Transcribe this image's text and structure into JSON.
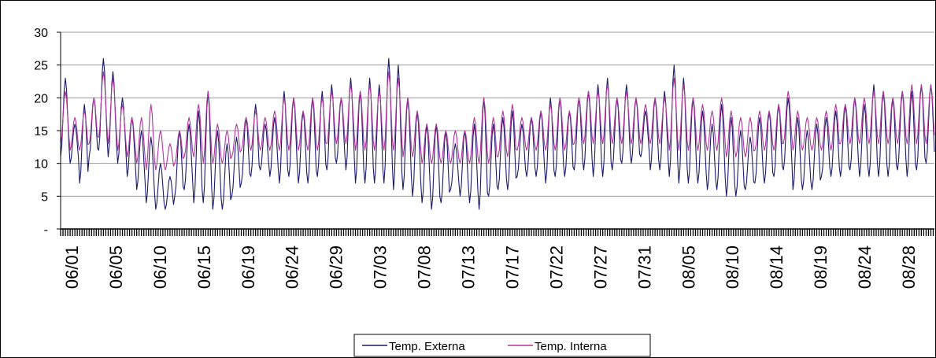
{
  "chart_data": {
    "type": "line",
    "title": "",
    "xlabel": "",
    "ylabel": "",
    "ylim": [
      0,
      30
    ],
    "y_ticks": [
      {
        "value": 0,
        "label": "-"
      },
      {
        "value": 5,
        "label": "5"
      },
      {
        "value": 10,
        "label": "10"
      },
      {
        "value": 15,
        "label": "15"
      },
      {
        "value": 20,
        "label": "20"
      },
      {
        "value": 25,
        "label": "25"
      },
      {
        "value": 30,
        "label": "30"
      }
    ],
    "x_range": [
      "06/01",
      "08/31"
    ],
    "x_tick_labels": [
      "06/01",
      "06/05",
      "06/10",
      "06/15",
      "06/19",
      "06/24",
      "06/29",
      "07/03",
      "07/08",
      "07/13",
      "07/17",
      "07/22",
      "07/27",
      "07/31",
      "08/05",
      "08/10",
      "08/14",
      "08/19",
      "08/24",
      "08/28"
    ],
    "gridlines": "horizontal",
    "legend_position": "bottom",
    "series": [
      {
        "name": "Temp. Externa",
        "color": "#1a1a6e",
        "daily_min": [
          11,
          10,
          7,
          11,
          12,
          11,
          10,
          8,
          6,
          4,
          3,
          3,
          5,
          6,
          4,
          4,
          3,
          3,
          5,
          7,
          8,
          9,
          8,
          7,
          8,
          7,
          7,
          8,
          9,
          10,
          9,
          7,
          7,
          7,
          7,
          6,
          6,
          5,
          4,
          3,
          4,
          6,
          5,
          4,
          3,
          5,
          6,
          6,
          8,
          8,
          8,
          7,
          8,
          8,
          9,
          9,
          8,
          8,
          9,
          10,
          10,
          11,
          9,
          9,
          8,
          7,
          7,
          7,
          6,
          6,
          5,
          5,
          6,
          7,
          7,
          8,
          9,
          6,
          6,
          6,
          8,
          8,
          8,
          9,
          8,
          8,
          8,
          8,
          9,
          8,
          9,
          10
        ],
        "daily_max": [
          23,
          16,
          19,
          20,
          26,
          24,
          20,
          17,
          15,
          14,
          10,
          8,
          15,
          16,
          18,
          21,
          15,
          13,
          14,
          17,
          19,
          16,
          17,
          21,
          20,
          18,
          20,
          21,
          22,
          20,
          23,
          21,
          23,
          22,
          26,
          25,
          20,
          18,
          16,
          16,
          15,
          13,
          15,
          16,
          20,
          16,
          17,
          18,
          16,
          17,
          18,
          20,
          20,
          18,
          20,
          21,
          22,
          23,
          20,
          22,
          20,
          18,
          20,
          21,
          25,
          23,
          20,
          18,
          16,
          19,
          17,
          15,
          14,
          17,
          18,
          19,
          20,
          17,
          15,
          16,
          17,
          18,
          19,
          20,
          19,
          22,
          21,
          20,
          21,
          21,
          22,
          22
        ]
      },
      {
        "name": "Temp. Interna",
        "color": "#b3359c",
        "daily_min": [
          13,
          12,
          12,
          13,
          14,
          13,
          12,
          11,
          10,
          9,
          9,
          9,
          10,
          11,
          11,
          10,
          10,
          10,
          11,
          12,
          12,
          12,
          12,
          12,
          12,
          12,
          12,
          12,
          13,
          13,
          13,
          12,
          12,
          12,
          12,
          12,
          11,
          11,
          10,
          10,
          10,
          10,
          10,
          10,
          10,
          10,
          11,
          11,
          12,
          12,
          12,
          12,
          12,
          12,
          13,
          13,
          13,
          13,
          13,
          13,
          13,
          13,
          13,
          13,
          12,
          12,
          12,
          12,
          12,
          12,
          11,
          11,
          11,
          12,
          12,
          12,
          13,
          12,
          12,
          12,
          12,
          12,
          13,
          13,
          13,
          13,
          13,
          13,
          13,
          13,
          13,
          13
        ],
        "daily_max": [
          21,
          17,
          18,
          20,
          24,
          23,
          19,
          17,
          17,
          19,
          15,
          13,
          15,
          17,
          19,
          21,
          16,
          15,
          16,
          17,
          18,
          17,
          18,
          20,
          20,
          18,
          20,
          20,
          21,
          20,
          22,
          21,
          22,
          21,
          24,
          23,
          20,
          18,
          16,
          16,
          15,
          15,
          15,
          17,
          20,
          17,
          18,
          19,
          17,
          17,
          18,
          19,
          20,
          18,
          20,
          21,
          21,
          22,
          20,
          21,
          20,
          19,
          20,
          20,
          23,
          22,
          20,
          19,
          18,
          20,
          18,
          17,
          17,
          18,
          18,
          19,
          21,
          18,
          17,
          17,
          18,
          19,
          19,
          20,
          20,
          21,
          21,
          20,
          21,
          22,
          22,
          22
        ]
      }
    ]
  }
}
